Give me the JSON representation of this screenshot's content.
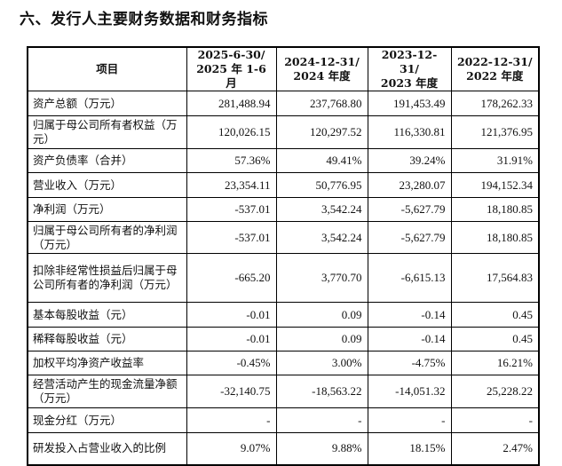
{
  "title": "六、发行人主要财务数据和财务指标",
  "table": {
    "headers": [
      "项目",
      "2025-6-30/\n2025 年 1-6 月",
      "2024-12-31/\n2024 年度",
      "2023-12-31/\n2023 年度",
      "2022-12-31/\n2022 年度"
    ],
    "rows": [
      {
        "label": "资产总额（万元）",
        "values": [
          "281,488.94",
          "237,768.80",
          "191,453.49",
          "178,262.33"
        ]
      },
      {
        "label": "归属于母公司所有者权益（万元）",
        "values": [
          "120,026.15",
          "120,297.52",
          "116,330.81",
          "121,376.95"
        ]
      },
      {
        "label": "资产负债率（合并）",
        "values": [
          "57.36%",
          "49.41%",
          "39.24%",
          "31.91%"
        ]
      },
      {
        "label": "营业收入（万元）",
        "values": [
          "23,354.11",
          "50,776.95",
          "23,280.07",
          "194,152.34"
        ]
      },
      {
        "label": "净利润（万元）",
        "values": [
          "-537.01",
          "3,542.24",
          "-5,627.79",
          "18,180.85"
        ]
      },
      {
        "label": "归属于母公司所有者的净利润（万元）",
        "values": [
          "-537.01",
          "3,542.24",
          "-5,627.79",
          "18,180.85"
        ]
      },
      {
        "label": "扣除非经常性损益后归属于母公司所有者的净利润（万元）",
        "values": [
          "-665.20",
          "3,770.70",
          "-6,615.13",
          "17,564.83"
        ]
      },
      {
        "label": "基本每股收益（元）",
        "values": [
          "-0.01",
          "0.09",
          "-0.14",
          "0.45"
        ]
      },
      {
        "label": "稀释每股收益（元）",
        "values": [
          "-0.01",
          "0.09",
          "-0.14",
          "0.45"
        ]
      },
      {
        "label": "加权平均净资产收益率",
        "values": [
          "-0.45%",
          "3.00%",
          "-4.75%",
          "16.21%"
        ]
      },
      {
        "label": "经营活动产生的现金流量净额（万元）",
        "values": [
          "-32,140.75",
          "-18,563.22",
          "-14,051.32",
          "25,228.22"
        ]
      },
      {
        "label": "现金分红（万元）",
        "values": [
          "-",
          "-",
          "-",
          "-"
        ]
      },
      {
        "label": "研发投入占营业收入的比例",
        "values": [
          "9.07%",
          "9.88%",
          "18.15%",
          "2.47%"
        ]
      }
    ]
  }
}
